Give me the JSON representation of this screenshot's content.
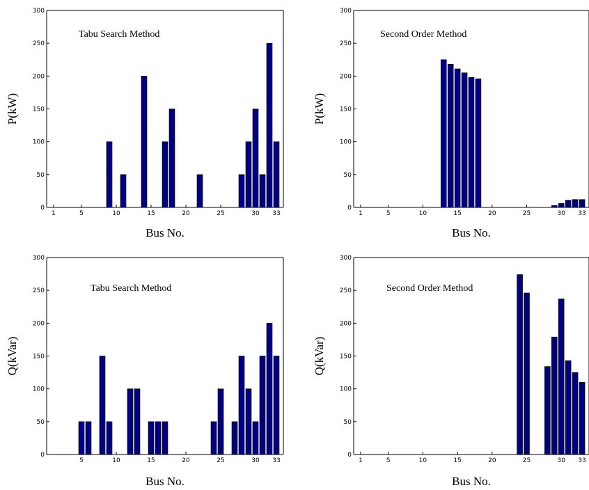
{
  "chart_data": [
    {
      "type": "bar",
      "title": "Tabu Search Method",
      "xlabel": "Bus No.",
      "ylabel": "P(kW)",
      "xlim": [
        0,
        34
      ],
      "ylim": [
        0,
        300
      ],
      "xticks": [
        1,
        5,
        10,
        15,
        20,
        25,
        30,
        33
      ],
      "yticks": [
        0,
        50,
        100,
        150,
        200,
        250,
        300
      ],
      "bar_color": "#000080",
      "x": [
        9,
        11,
        14,
        17,
        18,
        22,
        28,
        29,
        30,
        31,
        32,
        33
      ],
      "values": [
        100,
        50,
        200,
        100,
        150,
        50,
        50,
        100,
        150,
        50,
        250,
        100
      ]
    },
    {
      "type": "bar",
      "title": "Second Order Method",
      "xlabel": "Bus No.",
      "ylabel": "P(kW)",
      "xlim": [
        0,
        34
      ],
      "ylim": [
        0,
        300
      ],
      "xticks": [
        1,
        5,
        10,
        15,
        20,
        25,
        30,
        33
      ],
      "yticks": [
        0,
        50,
        100,
        150,
        200,
        250,
        300
      ],
      "bar_color": "#000080",
      "x": [
        13,
        14,
        15,
        16,
        17,
        18,
        29,
        30,
        31,
        32,
        33
      ],
      "values": [
        225,
        218,
        211,
        205,
        198,
        196,
        3,
        6,
        11,
        12,
        12
      ]
    },
    {
      "type": "bar",
      "title": "Tabu Search Method",
      "xlabel": "Bus No.",
      "ylabel": "Q(kVar)",
      "xlim": [
        0,
        34
      ],
      "ylim": [
        0,
        300
      ],
      "xticks": [
        5,
        10,
        15,
        20,
        25,
        30,
        33
      ],
      "yticks": [
        0,
        50,
        100,
        150,
        200,
        250,
        300
      ],
      "bar_color": "#000080",
      "x": [
        5,
        6,
        8,
        9,
        12,
        13,
        15,
        16,
        17,
        24,
        25,
        27,
        28,
        29,
        30,
        31,
        32,
        33
      ],
      "values": [
        50,
        50,
        150,
        50,
        100,
        100,
        50,
        50,
        50,
        50,
        100,
        50,
        150,
        100,
        50,
        150,
        200,
        150
      ]
    },
    {
      "type": "bar",
      "title": "Second Order Method",
      "xlabel": "Bus No.",
      "ylabel": "Q(kVar)",
      "xlim": [
        0,
        34
      ],
      "ylim": [
        0,
        300
      ],
      "xticks": [
        1,
        5,
        10,
        15,
        20,
        25,
        30,
        33
      ],
      "yticks": [
        0,
        50,
        100,
        150,
        200,
        250,
        300
      ],
      "bar_color": "#000080",
      "x": [
        24,
        25,
        28,
        29,
        30,
        31,
        32,
        33
      ],
      "values": [
        274,
        246,
        134,
        179,
        237,
        143,
        125,
        110
      ]
    }
  ]
}
